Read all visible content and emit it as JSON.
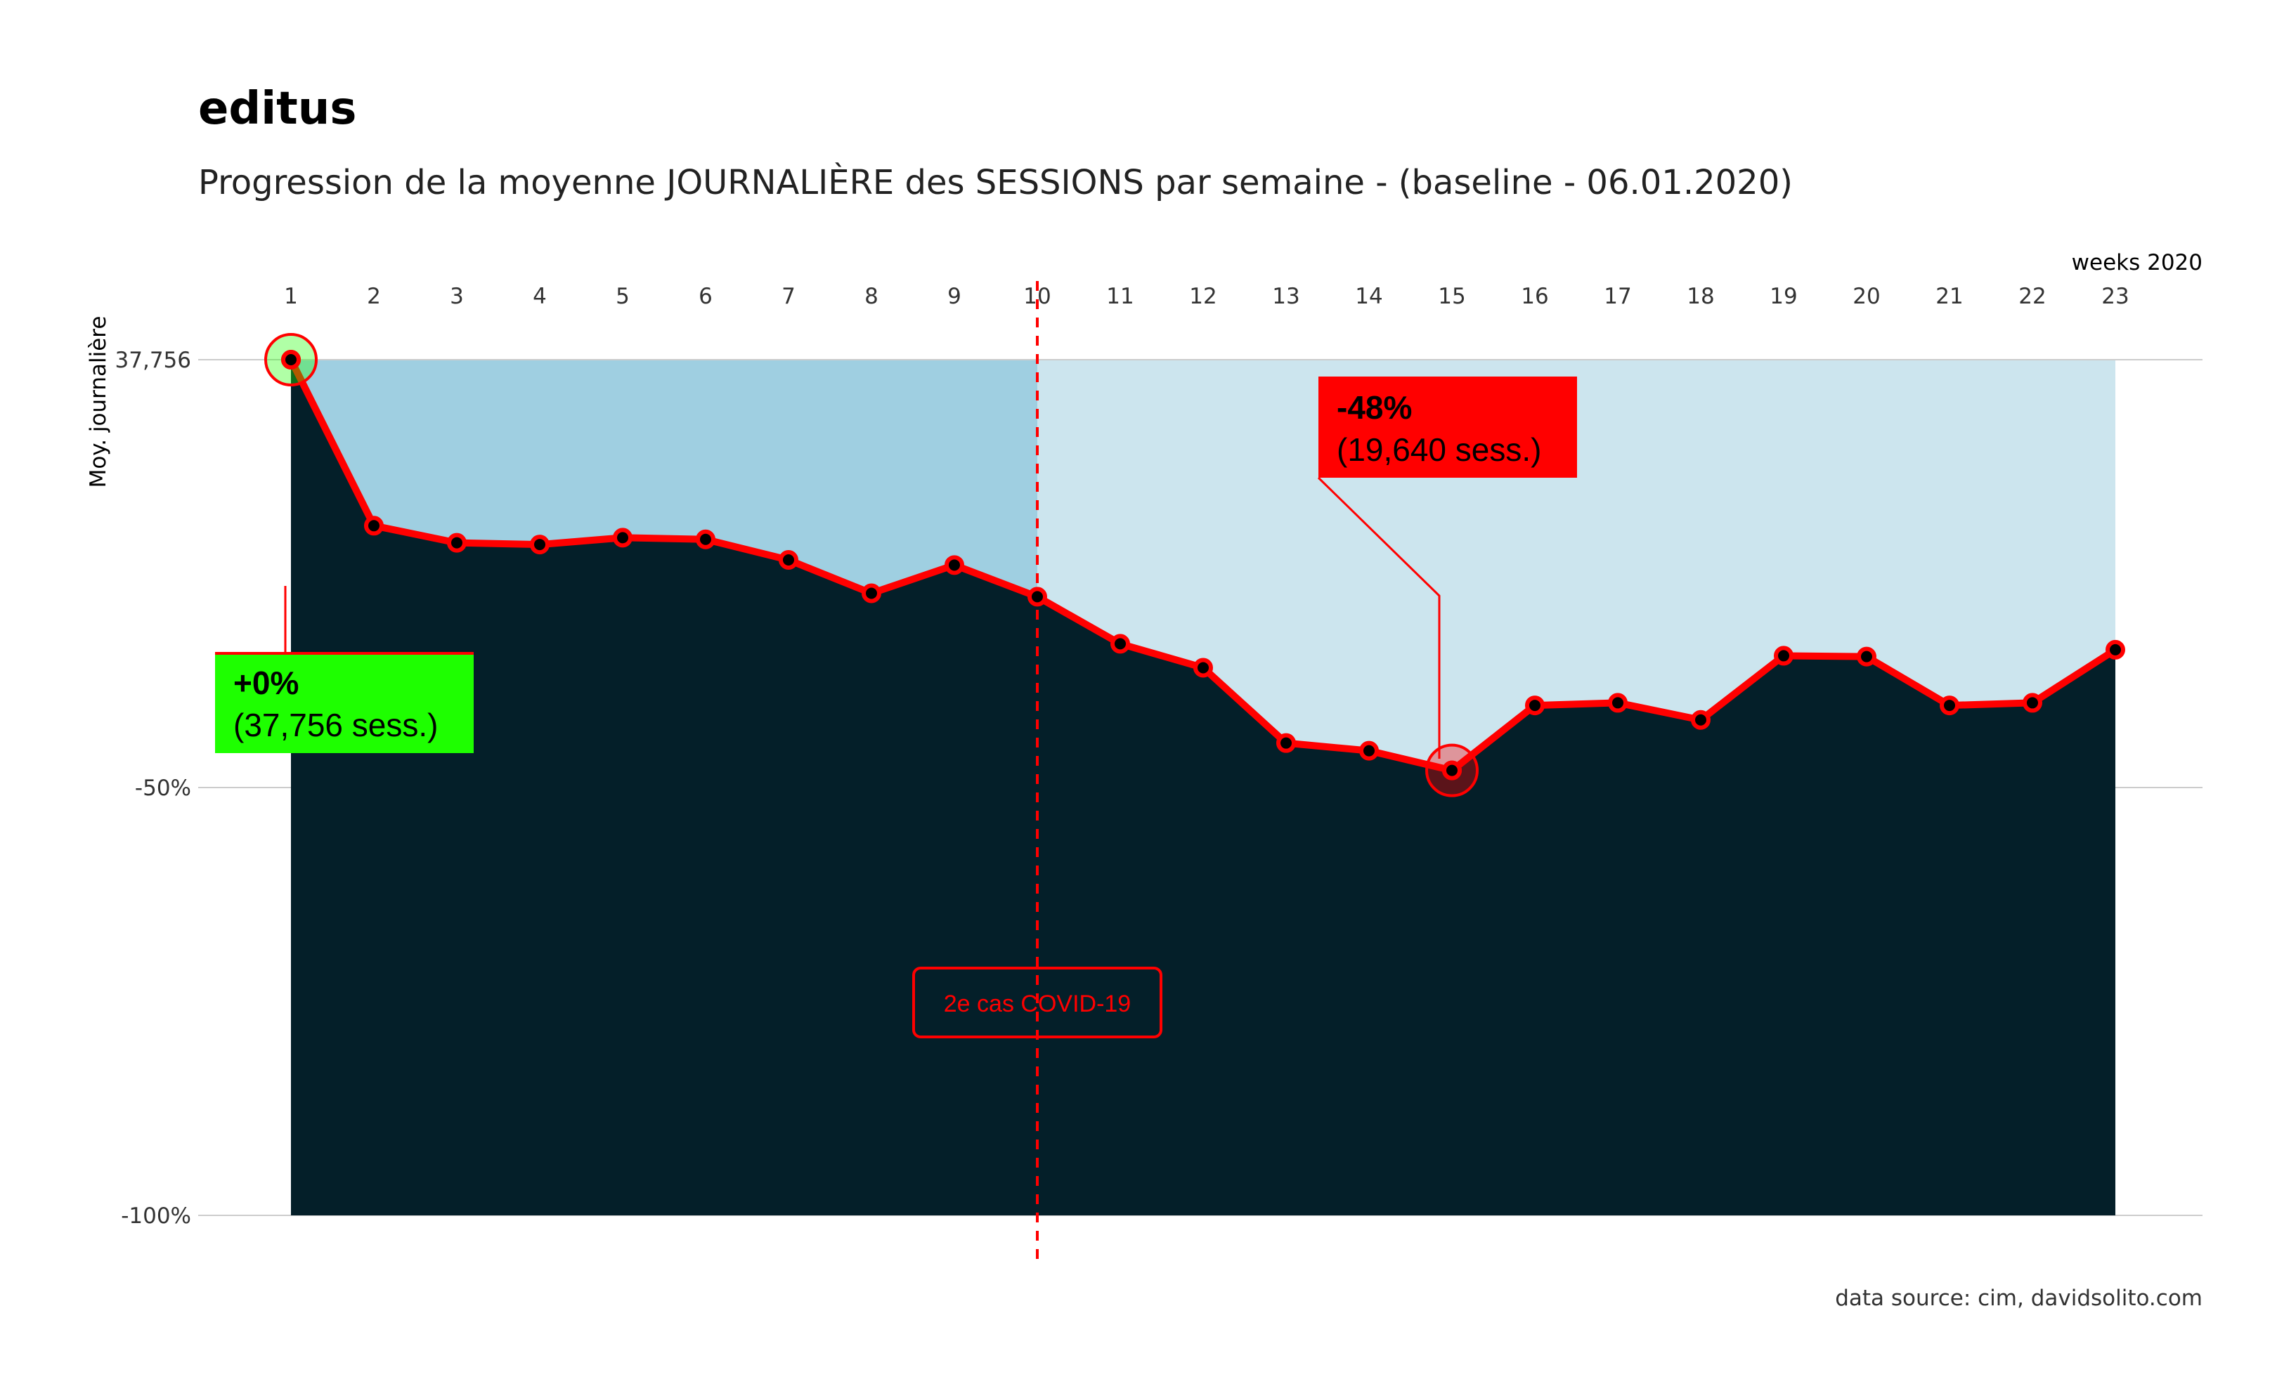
{
  "chart_data": {
    "type": "area",
    "title": "editus",
    "subtitle": "Progression de la moyenne JOURNALIÈRE des SESSIONS par semaine - (baseline - 06.01.2020)",
    "xlabel": "weeks 2020",
    "ylabel": "Moy. journalière",
    "caption": "data source: cim, davidsolito.com",
    "x_ticks": [
      "1",
      "2",
      "3",
      "4",
      "5",
      "6",
      "7",
      "8",
      "9",
      "10",
      "11",
      "12",
      "13",
      "14",
      "15",
      "16",
      "17",
      "18",
      "19",
      "20",
      "21",
      "22",
      "23"
    ],
    "y_ticks": [
      {
        "value": 0,
        "label": "37,756"
      },
      {
        "value": -50,
        "label": "-50%"
      },
      {
        "value": -100,
        "label": "-100%"
      }
    ],
    "ylim": [
      -100,
      0
    ],
    "xlim": [
      1,
      23
    ],
    "x": [
      1,
      2,
      3,
      4,
      5,
      6,
      7,
      8,
      9,
      10,
      11,
      12,
      13,
      14,
      15,
      16,
      17,
      18,
      19,
      20,
      21,
      22,
      23
    ],
    "values": [
      0,
      -19.4,
      -21.4,
      -21.6,
      -20.8,
      -21.0,
      -23.4,
      -27.3,
      -24.0,
      -27.7,
      -33.2,
      -36.0,
      -44.8,
      -45.7,
      -48.0,
      -40.4,
      -40.1,
      -42.1,
      -34.6,
      -34.7,
      -40.4,
      -40.1,
      -33.9
    ],
    "event": {
      "week": 10,
      "label": "2e cas COVID-19",
      "color": "#ff0000"
    },
    "annotations": [
      {
        "week": 1,
        "value": 0,
        "pct_label": "+0%",
        "sess_label": "(37,756 sess.)",
        "fill": "#1eff00"
      },
      {
        "week": 15,
        "value": -48,
        "pct_label": "-48%",
        "sess_label": "(19,640 sess.)",
        "fill": "#ff0000"
      }
    ],
    "colors": {
      "area_fill": "#041f29",
      "line": "#ff0000",
      "band_before_event": "#9fcfe1",
      "band_after_event": "#cce5ee",
      "grid": "#cccccc"
    },
    "grid": true,
    "legend": "none"
  }
}
